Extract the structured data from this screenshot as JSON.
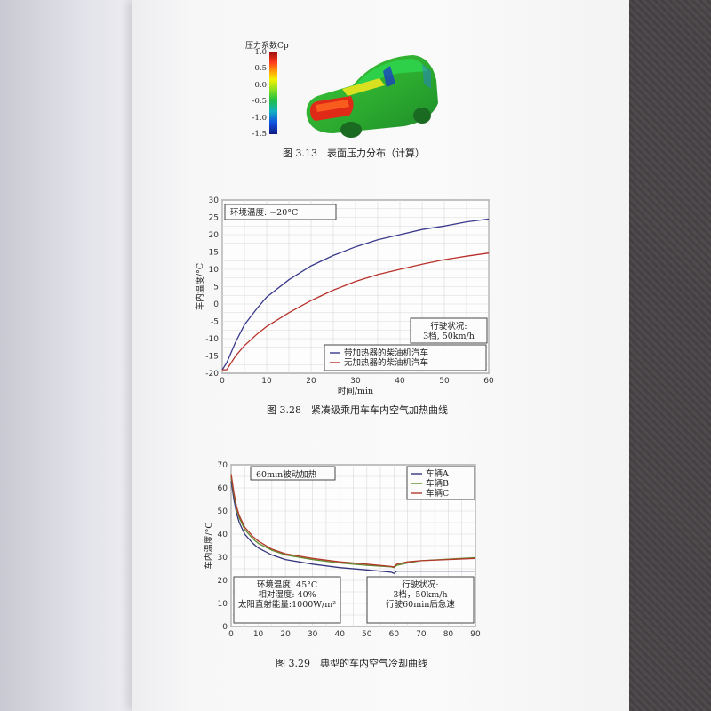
{
  "figure_313": {
    "colorbar_title": "压力系数Cp",
    "colorbar_ticks": [
      "1.0",
      "0.5",
      "0.0",
      "-0.5",
      "-1.0",
      "-1.5"
    ],
    "caption": "图 3.13　表面压力分布（计算）"
  },
  "figure_328": {
    "caption": "图 3.28　紧凑级乘用车车内空气加热曲线",
    "condition_box": "环境温度: −20°C",
    "driving_box_title": "行驶状况:",
    "driving_box_value": "3档, 50km/h"
  },
  "figure_329": {
    "caption": "图 3.29　典型的车内空气冷却曲线",
    "heating_box": "60min被动加热",
    "env_lines": [
      "环境温度: 45°C",
      "相对湿度: 40%",
      "太阳直射能量:1000W/m²"
    ],
    "drive_lines": [
      "行驶状况:",
      "3档，50km/h",
      "行驶60min后急速"
    ]
  },
  "chart_data": [
    {
      "type": "line",
      "xlabel": "时间/min",
      "ylabel": "车内温度/°C",
      "xlim": [
        0,
        60
      ],
      "ylim": [
        -20,
        30
      ],
      "xticks": [
        0,
        10,
        20,
        30,
        40,
        50,
        60
      ],
      "yticks": [
        -20,
        -15,
        -10,
        -5,
        0,
        5,
        10,
        15,
        20,
        25,
        30
      ],
      "grid": true,
      "legend": "bottom-right",
      "series": [
        {
          "name": "带加热器的柴油机汽车",
          "color": "#3b3a8c",
          "x": [
            0,
            1,
            2,
            3,
            5,
            8,
            10,
            15,
            20,
            25,
            30,
            35,
            40,
            45,
            50,
            55,
            60
          ],
          "y": [
            -19,
            -17,
            -14,
            -11,
            -6,
            -1,
            2,
            7,
            11,
            14,
            16.5,
            18.5,
            20,
            21.5,
            22.5,
            23.7,
            24.5
          ]
        },
        {
          "name": "无加热器的柴油机汽车",
          "color": "#b8302a",
          "x": [
            0,
            1,
            2,
            3,
            5,
            8,
            10,
            15,
            20,
            25,
            30,
            35,
            40,
            45,
            50,
            55,
            60
          ],
          "y": [
            -19,
            -19,
            -17,
            -15,
            -12,
            -8.5,
            -6.5,
            -2.5,
            1,
            4,
            6.5,
            8.5,
            10,
            11.5,
            12.8,
            13.8,
            14.7
          ]
        }
      ]
    },
    {
      "type": "line",
      "xlabel": "",
      "ylabel": "车内温度/°C",
      "xlim": [
        0,
        90
      ],
      "ylim": [
        0,
        70
      ],
      "xticks": [
        0,
        10,
        20,
        30,
        40,
        50,
        60,
        70,
        80,
        90
      ],
      "yticks": [
        0,
        10,
        20,
        30,
        40,
        50,
        60,
        70
      ],
      "grid": true,
      "legend": "top-right",
      "series": [
        {
          "name": "车辆A",
          "color": "#35357f",
          "x": [
            0,
            1,
            2,
            3,
            5,
            8,
            10,
            15,
            20,
            30,
            40,
            50,
            59,
            60,
            61,
            65,
            70,
            80,
            90
          ],
          "y": [
            63,
            55,
            49,
            45,
            40,
            36,
            34,
            31,
            29,
            27,
            25.5,
            24.5,
            23.5,
            23,
            24,
            24,
            24,
            24,
            24
          ]
        },
        {
          "name": "车辆B",
          "color": "#5e8a2a",
          "x": [
            0,
            1,
            2,
            3,
            5,
            8,
            10,
            15,
            20,
            30,
            40,
            50,
            59,
            60,
            61,
            65,
            70,
            80,
            90
          ],
          "y": [
            65,
            57,
            51,
            47,
            42,
            38,
            36,
            33,
            31,
            29,
            27.5,
            26.5,
            25.8,
            25.5,
            26.5,
            27.5,
            28.5,
            29.2,
            29.8
          ]
        },
        {
          "name": "车辆C",
          "color": "#b23a2c",
          "x": [
            0,
            1,
            2,
            3,
            5,
            8,
            10,
            15,
            20,
            30,
            40,
            50,
            59,
            60,
            61,
            65,
            70,
            80,
            90
          ],
          "y": [
            66,
            58,
            52,
            48,
            43,
            39,
            37,
            33.5,
            31.5,
            29.5,
            28,
            27,
            26,
            25.8,
            27,
            28,
            28.5,
            29,
            29.5
          ]
        }
      ]
    }
  ]
}
